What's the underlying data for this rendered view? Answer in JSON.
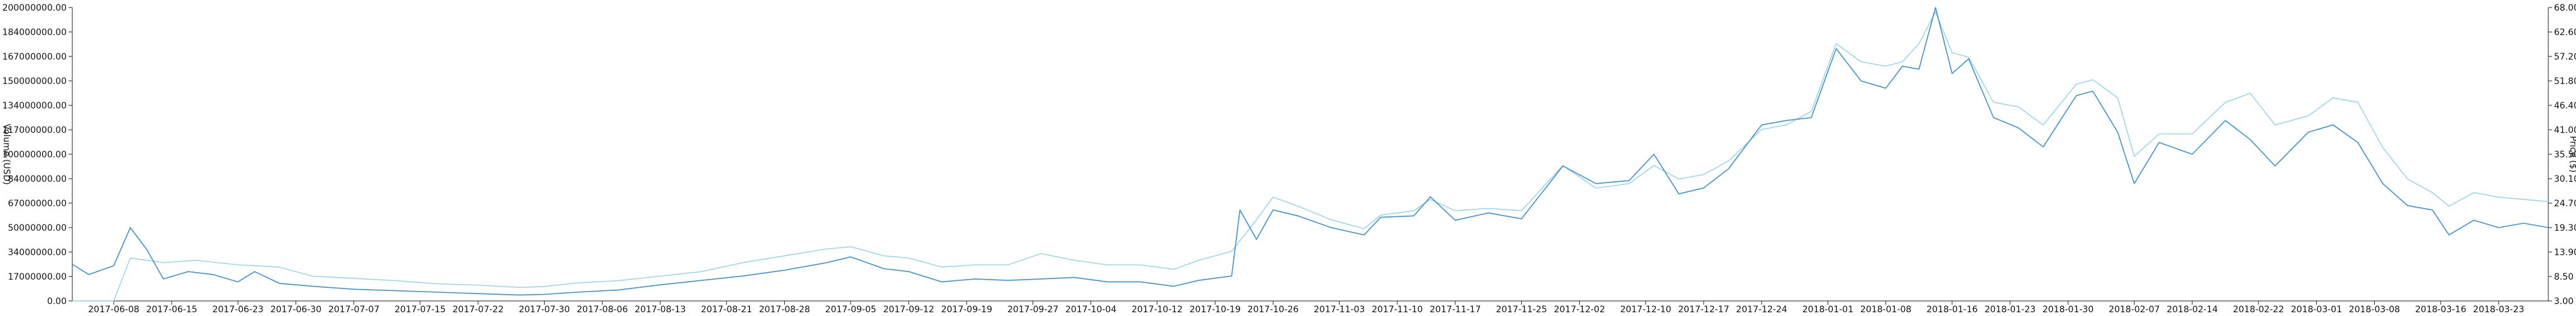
{
  "chart_data": {
    "type": "line",
    "title": "",
    "xlabel": "",
    "ylabel_left": "Volume (USD)",
    "ylabel_right": "Price ($)",
    "grid": false,
    "legend": "none",
    "x_tick_labels": [
      "2017-06-08",
      "2017-06-15",
      "2017-06-23",
      "2017-06-30",
      "2017-07-07",
      "2017-07-15",
      "2017-07-22",
      "2017-07-30",
      "2017-08-06",
      "2017-08-13",
      "2017-08-21",
      "2017-08-28",
      "2017-09-05",
      "2017-09-12",
      "2017-09-19",
      "2017-09-27",
      "2017-10-04",
      "2017-10-12",
      "2017-10-19",
      "2017-10-26",
      "2017-11-03",
      "2017-11-10",
      "2017-11-17",
      "2017-11-25",
      "2017-12-02",
      "2017-12-10",
      "2017-12-17",
      "2017-12-24",
      "2018-01-01",
      "2018-01-08",
      "2018-01-16",
      "2018-01-23",
      "2018-01-30",
      "2018-02-07",
      "2018-02-14",
      "2018-02-22",
      "2018-03-01",
      "2018-03-08",
      "2018-03-16",
      "2018-03-23"
    ],
    "y_left_ticks": [
      "0.00",
      "17000000.00",
      "34000000.00",
      "50000000.00",
      "67000000.00",
      "84000000.00",
      "100000000.00",
      "117000000.00",
      "134000000.00",
      "150000000.00",
      "167000000.00",
      "184000000.00",
      "200000000.00"
    ],
    "y_right_ticks": [
      "3.00",
      "8.50",
      "13.90",
      "19.30",
      "24.70",
      "30.10",
      "35.50",
      "41.00",
      "46.40",
      "51.80",
      "57.20",
      "62.60",
      "68.00"
    ],
    "y_left_range": [
      0,
      200000000
    ],
    "y_right_range": [
      3.0,
      68.0
    ],
    "x_range": [
      "2017-06-03",
      "2018-03-29"
    ],
    "colors": {
      "volume": "#3a93d4",
      "price": "#8fd3ec",
      "axis": "#222222"
    },
    "series": [
      {
        "key": "volume",
        "axis": "left",
        "points": [
          [
            "2017-06-03",
            25000000
          ],
          [
            "2017-06-05",
            18000000
          ],
          [
            "2017-06-08",
            24000000
          ],
          [
            "2017-06-10",
            50000000
          ],
          [
            "2017-06-12",
            35000000
          ],
          [
            "2017-06-14",
            15000000
          ],
          [
            "2017-06-17",
            20000000
          ],
          [
            "2017-06-20",
            18000000
          ],
          [
            "2017-06-23",
            13000000
          ],
          [
            "2017-06-25",
            20000000
          ],
          [
            "2017-06-28",
            12000000
          ],
          [
            "2017-07-02",
            10000000
          ],
          [
            "2017-07-07",
            8000000
          ],
          [
            "2017-07-12",
            7000000
          ],
          [
            "2017-07-17",
            6000000
          ],
          [
            "2017-07-22",
            5000000
          ],
          [
            "2017-07-27",
            4000000
          ],
          [
            "2017-07-30",
            4500000
          ],
          [
            "2017-08-03",
            6000000
          ],
          [
            "2017-08-08",
            7500000
          ],
          [
            "2017-08-13",
            11000000
          ],
          [
            "2017-08-18",
            14000000
          ],
          [
            "2017-08-23",
            17000000
          ],
          [
            "2017-08-28",
            21000000
          ],
          [
            "2017-09-02",
            26000000
          ],
          [
            "2017-09-05",
            30000000
          ],
          [
            "2017-09-09",
            22000000
          ],
          [
            "2017-09-12",
            20000000
          ],
          [
            "2017-09-16",
            13000000
          ],
          [
            "2017-09-20",
            15000000
          ],
          [
            "2017-09-24",
            14000000
          ],
          [
            "2017-09-28",
            15000000
          ],
          [
            "2017-10-02",
            16000000
          ],
          [
            "2017-10-06",
            13000000
          ],
          [
            "2017-10-10",
            13000000
          ],
          [
            "2017-10-14",
            10000000
          ],
          [
            "2017-10-17",
            14000000
          ],
          [
            "2017-10-21",
            17000000
          ],
          [
            "2017-10-22",
            62000000
          ],
          [
            "2017-10-24",
            42000000
          ],
          [
            "2017-10-26",
            62000000
          ],
          [
            "2017-10-29",
            58000000
          ],
          [
            "2017-11-02",
            50000000
          ],
          [
            "2017-11-06",
            45000000
          ],
          [
            "2017-11-08",
            57000000
          ],
          [
            "2017-11-12",
            58000000
          ],
          [
            "2017-11-14",
            71000000
          ],
          [
            "2017-11-17",
            55000000
          ],
          [
            "2017-11-21",
            60000000
          ],
          [
            "2017-11-25",
            56000000
          ],
          [
            "2017-11-30",
            92000000
          ],
          [
            "2017-12-04",
            80000000
          ],
          [
            "2017-12-08",
            82000000
          ],
          [
            "2017-12-11",
            100000000
          ],
          [
            "2017-12-14",
            73000000
          ],
          [
            "2017-12-17",
            77000000
          ],
          [
            "2017-12-20",
            90000000
          ],
          [
            "2017-12-24",
            120000000
          ],
          [
            "2017-12-27",
            123000000
          ],
          [
            "2017-12-30",
            125000000
          ],
          [
            "2018-01-02",
            172000000
          ],
          [
            "2018-01-05",
            150000000
          ],
          [
            "2018-01-08",
            145000000
          ],
          [
            "2018-01-10",
            160000000
          ],
          [
            "2018-01-12",
            158000000
          ],
          [
            "2018-01-14",
            200000000
          ],
          [
            "2018-01-16",
            155000000
          ],
          [
            "2018-01-18",
            165000000
          ],
          [
            "2018-01-21",
            125000000
          ],
          [
            "2018-01-24",
            118000000
          ],
          [
            "2018-01-27",
            105000000
          ],
          [
            "2018-01-31",
            140000000
          ],
          [
            "2018-02-02",
            143000000
          ],
          [
            "2018-02-05",
            115000000
          ],
          [
            "2018-02-07",
            80000000
          ],
          [
            "2018-02-10",
            108000000
          ],
          [
            "2018-02-14",
            100000000
          ],
          [
            "2018-02-18",
            123000000
          ],
          [
            "2018-02-21",
            110000000
          ],
          [
            "2018-02-24",
            92000000
          ],
          [
            "2018-02-28",
            115000000
          ],
          [
            "2018-03-03",
            120000000
          ],
          [
            "2018-03-06",
            108000000
          ],
          [
            "2018-03-09",
            80000000
          ],
          [
            "2018-03-12",
            65000000
          ],
          [
            "2018-03-15",
            62000000
          ],
          [
            "2018-03-17",
            45000000
          ],
          [
            "2018-03-20",
            55000000
          ],
          [
            "2018-03-23",
            50000000
          ],
          [
            "2018-03-26",
            53000000
          ],
          [
            "2018-03-29",
            50000000
          ]
        ]
      },
      {
        "key": "price",
        "axis": "right",
        "points": [
          [
            "2017-06-03",
            3.0
          ],
          [
            "2017-06-08",
            3.0
          ],
          [
            "2017-06-10",
            12.5
          ],
          [
            "2017-06-14",
            11.5
          ],
          [
            "2017-06-18",
            12.0
          ],
          [
            "2017-06-23",
            11.0
          ],
          [
            "2017-06-28",
            10.5
          ],
          [
            "2017-07-02",
            8.5
          ],
          [
            "2017-07-07",
            8.0
          ],
          [
            "2017-07-12",
            7.5
          ],
          [
            "2017-07-17",
            6.8
          ],
          [
            "2017-07-22",
            6.5
          ],
          [
            "2017-07-27",
            6.0
          ],
          [
            "2017-07-30",
            6.2
          ],
          [
            "2017-08-03",
            7.0
          ],
          [
            "2017-08-08",
            7.5
          ],
          [
            "2017-08-13",
            8.5
          ],
          [
            "2017-08-18",
            9.5
          ],
          [
            "2017-08-23",
            11.5
          ],
          [
            "2017-08-28",
            13.0
          ],
          [
            "2017-09-02",
            14.5
          ],
          [
            "2017-09-05",
            15.0
          ],
          [
            "2017-09-09",
            13.0
          ],
          [
            "2017-09-12",
            12.5
          ],
          [
            "2017-09-16",
            10.5
          ],
          [
            "2017-09-20",
            11.0
          ],
          [
            "2017-09-24",
            11.0
          ],
          [
            "2017-09-28",
            13.5
          ],
          [
            "2017-10-02",
            12.0
          ],
          [
            "2017-10-06",
            11.0
          ],
          [
            "2017-10-10",
            11.0
          ],
          [
            "2017-10-14",
            10.0
          ],
          [
            "2017-10-17",
            12.0
          ],
          [
            "2017-10-21",
            14.0
          ],
          [
            "2017-10-24",
            21.0
          ],
          [
            "2017-10-26",
            26.0
          ],
          [
            "2017-10-29",
            24.0
          ],
          [
            "2017-11-02",
            21.0
          ],
          [
            "2017-11-06",
            19.0
          ],
          [
            "2017-11-08",
            22.0
          ],
          [
            "2017-11-12",
            23.0
          ],
          [
            "2017-11-14",
            25.5
          ],
          [
            "2017-11-17",
            23.0
          ],
          [
            "2017-11-21",
            23.5
          ],
          [
            "2017-11-25",
            23.0
          ],
          [
            "2017-11-30",
            33.0
          ],
          [
            "2017-12-04",
            28.0
          ],
          [
            "2017-12-08",
            29.0
          ],
          [
            "2017-12-11",
            33.0
          ],
          [
            "2017-12-14",
            30.0
          ],
          [
            "2017-12-17",
            31.0
          ],
          [
            "2017-12-20",
            34.0
          ],
          [
            "2017-12-24",
            41.0
          ],
          [
            "2017-12-27",
            42.0
          ],
          [
            "2017-12-30",
            45.0
          ],
          [
            "2018-01-02",
            60.0
          ],
          [
            "2018-01-05",
            56.0
          ],
          [
            "2018-01-08",
            55.0
          ],
          [
            "2018-01-10",
            56.0
          ],
          [
            "2018-01-12",
            60.0
          ],
          [
            "2018-01-14",
            67.0
          ],
          [
            "2018-01-16",
            58.0
          ],
          [
            "2018-01-18",
            57.0
          ],
          [
            "2018-01-21",
            47.0
          ],
          [
            "2018-01-24",
            46.0
          ],
          [
            "2018-01-27",
            42.0
          ],
          [
            "2018-01-31",
            51.0
          ],
          [
            "2018-02-02",
            52.0
          ],
          [
            "2018-02-05",
            48.0
          ],
          [
            "2018-02-07",
            35.0
          ],
          [
            "2018-02-10",
            40.0
          ],
          [
            "2018-02-14",
            40.0
          ],
          [
            "2018-02-18",
            47.0
          ],
          [
            "2018-02-21",
            49.0
          ],
          [
            "2018-02-24",
            42.0
          ],
          [
            "2018-02-28",
            44.0
          ],
          [
            "2018-03-03",
            48.0
          ],
          [
            "2018-03-06",
            47.0
          ],
          [
            "2018-03-09",
            37.0
          ],
          [
            "2018-03-12",
            30.0
          ],
          [
            "2018-03-15",
            27.0
          ],
          [
            "2018-03-17",
            24.0
          ],
          [
            "2018-03-20",
            27.0
          ],
          [
            "2018-03-23",
            26.0
          ],
          [
            "2018-03-26",
            25.5
          ],
          [
            "2018-03-29",
            25.0
          ]
        ]
      }
    ]
  }
}
